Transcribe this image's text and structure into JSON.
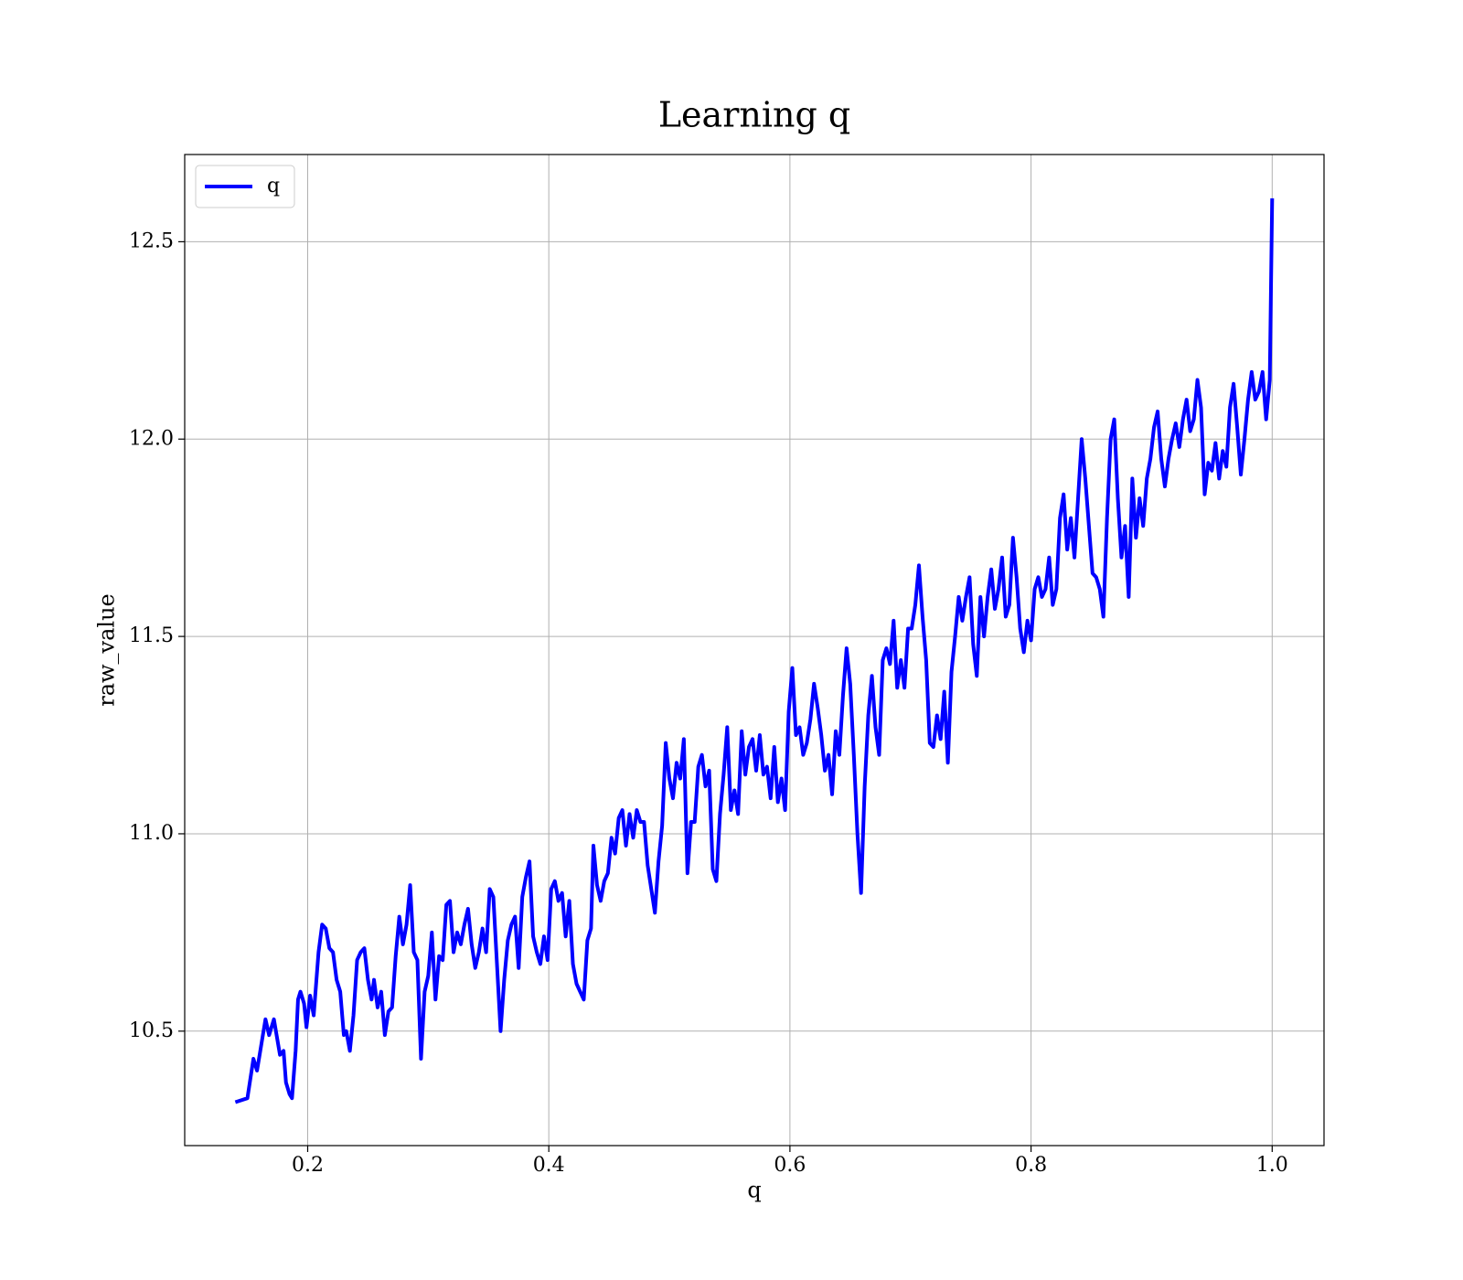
{
  "chart_data": {
    "type": "line",
    "title": "Learning q",
    "xlabel": "q",
    "ylabel": "raw_value",
    "x": [
      0.14,
      0.15,
      0.155,
      0.158,
      0.165,
      0.168,
      0.172,
      0.177,
      0.18,
      0.182,
      0.185,
      0.187,
      0.19,
      0.192,
      0.194,
      0.197,
      0.199,
      0.202,
      0.205,
      0.209,
      0.212,
      0.215,
      0.218,
      0.221,
      0.224,
      0.227,
      0.23,
      0.232,
      0.235,
      0.238,
      0.241,
      0.244,
      0.247,
      0.25,
      0.253,
      0.255,
      0.258,
      0.261,
      0.264,
      0.267,
      0.27,
      0.273,
      0.276,
      0.279,
      0.282,
      0.285,
      0.288,
      0.291,
      0.294,
      0.297,
      0.3,
      0.303,
      0.306,
      0.309,
      0.312,
      0.315,
      0.318,
      0.321,
      0.324,
      0.327,
      0.33,
      0.333,
      0.336,
      0.339,
      0.342,
      0.345,
      0.348,
      0.351,
      0.354,
      0.357,
      0.36,
      0.363,
      0.366,
      0.369,
      0.372,
      0.375,
      0.378,
      0.381,
      0.384,
      0.387,
      0.39,
      0.393,
      0.396,
      0.399,
      0.402,
      0.405,
      0.408,
      0.411,
      0.414,
      0.417,
      0.42,
      0.423,
      0.426,
      0.429,
      0.432,
      0.435,
      0.437,
      0.44,
      0.443,
      0.446,
      0.449,
      0.452,
      0.455,
      0.458,
      0.461,
      0.464,
      0.467,
      0.47,
      0.473,
      0.476,
      0.479,
      0.482,
      0.485,
      0.488,
      0.491,
      0.494,
      0.497,
      0.5,
      0.503,
      0.506,
      0.509,
      0.512,
      0.515,
      0.518,
      0.521,
      0.524,
      0.527,
      0.53,
      0.533,
      0.536,
      0.539,
      0.542,
      0.545,
      0.548,
      0.551,
      0.554,
      0.557,
      0.56,
      0.563,
      0.566,
      0.569,
      0.572,
      0.575,
      0.578,
      0.581,
      0.584,
      0.587,
      0.59,
      0.593,
      0.596,
      0.599,
      0.602,
      0.605,
      0.608,
      0.611,
      0.614,
      0.617,
      0.62,
      0.623,
      0.626,
      0.629,
      0.632,
      0.635,
      0.638,
      0.641,
      0.644,
      0.647,
      0.65,
      0.653,
      0.656,
      0.659,
      0.662,
      0.665,
      0.668,
      0.671,
      0.674,
      0.677,
      0.68,
      0.683,
      0.686,
      0.689,
      0.692,
      0.695,
      0.698,
      0.701,
      0.704,
      0.707,
      0.71,
      0.713,
      0.716,
      0.719,
      0.722,
      0.725,
      0.728,
      0.731,
      0.734,
      0.737,
      0.74,
      0.743,
      0.746,
      0.749,
      0.752,
      0.755,
      0.758,
      0.761,
      0.764,
      0.767,
      0.77,
      0.773,
      0.776,
      0.779,
      0.782,
      0.785,
      0.788,
      0.791,
      0.794,
      0.797,
      0.8,
      0.803,
      0.806,
      0.809,
      0.812,
      0.815,
      0.818,
      0.821,
      0.824,
      0.827,
      0.83,
      0.833,
      0.836,
      0.839,
      0.842,
      0.845,
      0.848,
      0.851,
      0.854,
      0.857,
      0.86,
      0.863,
      0.866,
      0.869,
      0.872,
      0.875,
      0.878,
      0.881,
      0.884,
      0.887,
      0.89,
      0.893,
      0.896,
      0.899,
      0.902,
      0.905,
      0.908,
      0.911,
      0.914,
      0.917,
      0.92,
      0.923,
      0.926,
      0.929,
      0.932,
      0.935,
      0.938,
      0.941,
      0.944,
      0.947,
      0.95,
      0.953,
      0.956,
      0.959,
      0.962,
      0.965,
      0.968,
      0.971,
      0.974,
      0.977,
      0.98,
      0.983,
      0.986,
      0.989,
      0.992,
      0.995,
      0.998,
      1.0
    ],
    "series": [
      {
        "name": "q",
        "color": "#0000ff",
        "values": [
          10.32,
          10.33,
          10.43,
          10.4,
          10.53,
          10.49,
          10.53,
          10.44,
          10.45,
          10.37,
          10.34,
          10.33,
          10.45,
          10.58,
          10.6,
          10.57,
          10.51,
          10.59,
          10.54,
          10.7,
          10.77,
          10.76,
          10.71,
          10.7,
          10.63,
          10.6,
          10.49,
          10.5,
          10.45,
          10.54,
          10.68,
          10.7,
          10.71,
          10.63,
          10.58,
          10.63,
          10.56,
          10.6,
          10.49,
          10.55,
          10.56,
          10.69,
          10.79,
          10.72,
          10.77,
          10.87,
          10.7,
          10.68,
          10.43,
          10.6,
          10.64,
          10.75,
          10.58,
          10.69,
          10.68,
          10.82,
          10.83,
          10.7,
          10.75,
          10.72,
          10.77,
          10.81,
          10.72,
          10.66,
          10.7,
          10.76,
          10.7,
          10.86,
          10.84,
          10.67,
          10.5,
          10.63,
          10.73,
          10.77,
          10.79,
          10.66,
          10.84,
          10.89,
          10.93,
          10.74,
          10.7,
          10.67,
          10.74,
          10.68,
          10.86,
          10.88,
          10.83,
          10.85,
          10.74,
          10.83,
          10.67,
          10.62,
          10.6,
          10.58,
          10.73,
          10.76,
          10.97,
          10.87,
          10.83,
          10.88,
          10.9,
          10.99,
          10.95,
          11.04,
          11.06,
          10.97,
          11.05,
          10.99,
          11.06,
          11.03,
          11.03,
          10.92,
          10.86,
          10.8,
          10.93,
          11.02,
          11.23,
          11.14,
          11.09,
          11.18,
          11.14,
          11.24,
          10.9,
          11.03,
          11.03,
          11.17,
          11.2,
          11.12,
          11.16,
          10.91,
          10.88,
          11.05,
          11.15,
          11.27,
          11.06,
          11.11,
          11.05,
          11.26,
          11.15,
          11.22,
          11.24,
          11.16,
          11.25,
          11.15,
          11.17,
          11.09,
          11.22,
          11.08,
          11.14,
          11.06,
          11.31,
          11.42,
          11.25,
          11.27,
          11.2,
          11.23,
          11.29,
          11.38,
          11.32,
          11.25,
          11.16,
          11.2,
          11.1,
          11.26,
          11.2,
          11.35,
          11.47,
          11.38,
          11.2,
          11.0,
          10.85,
          11.12,
          11.3,
          11.4,
          11.27,
          11.2,
          11.44,
          11.47,
          11.43,
          11.54,
          11.37,
          11.44,
          11.37,
          11.52,
          11.52,
          11.58,
          11.68,
          11.55,
          11.44,
          11.23,
          11.22,
          11.3,
          11.24,
          11.36,
          11.18,
          11.41,
          11.5,
          11.6,
          11.54,
          11.6,
          11.65,
          11.48,
          11.4,
          11.6,
          11.5,
          11.6,
          11.67,
          11.57,
          11.62,
          11.7,
          11.55,
          11.58,
          11.75,
          11.65,
          11.52,
          11.46,
          11.54,
          11.49,
          11.62,
          11.65,
          11.6,
          11.62,
          11.7,
          11.58,
          11.62,
          11.8,
          11.86,
          11.72,
          11.8,
          11.7,
          11.85,
          12.0,
          11.9,
          11.78,
          11.66,
          11.65,
          11.62,
          11.55,
          11.8,
          12.0,
          12.05,
          11.85,
          11.7,
          11.78,
          11.6,
          11.9,
          11.75,
          11.85,
          11.78,
          11.9,
          11.95,
          12.03,
          12.07,
          11.95,
          11.88,
          11.95,
          12.0,
          12.04,
          11.98,
          12.05,
          12.1,
          12.02,
          12.05,
          12.15,
          12.08,
          11.86,
          11.94,
          11.92,
          11.99,
          11.9,
          11.97,
          11.93,
          12.08,
          12.14,
          12.03,
          11.91,
          12.0,
          12.1,
          12.17,
          12.1,
          12.12,
          12.17,
          12.05,
          12.15,
          12.61
        ]
      }
    ],
    "xlim": [
      0.098,
      1.043
    ],
    "ylim": [
      10.21,
      12.721
    ],
    "xticks": [
      0.2,
      0.4,
      0.6,
      0.8,
      {
        "value": 1.0,
        "label": "1.0"
      }
    ],
    "yticks": [
      10.5,
      {
        "value": 11.0,
        "label": "11.0"
      },
      11.5,
      {
        "value": 12.0,
        "label": "12.0"
      },
      12.5
    ],
    "grid": true,
    "legend": "upper left"
  }
}
